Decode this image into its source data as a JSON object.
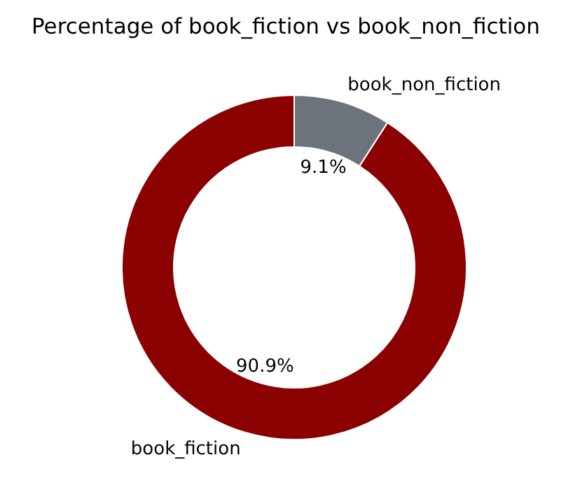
{
  "chart_data": {
    "type": "donut",
    "title": "Percentage of book_fiction vs book_non_fiction",
    "categories": [
      "book_fiction",
      "book_non_fiction"
    ],
    "values": [
      90.9,
      9.1
    ],
    "colors": [
      "#8b0000",
      "#6c737b"
    ],
    "value_labels": [
      "90.9%",
      "9.1%"
    ]
  }
}
